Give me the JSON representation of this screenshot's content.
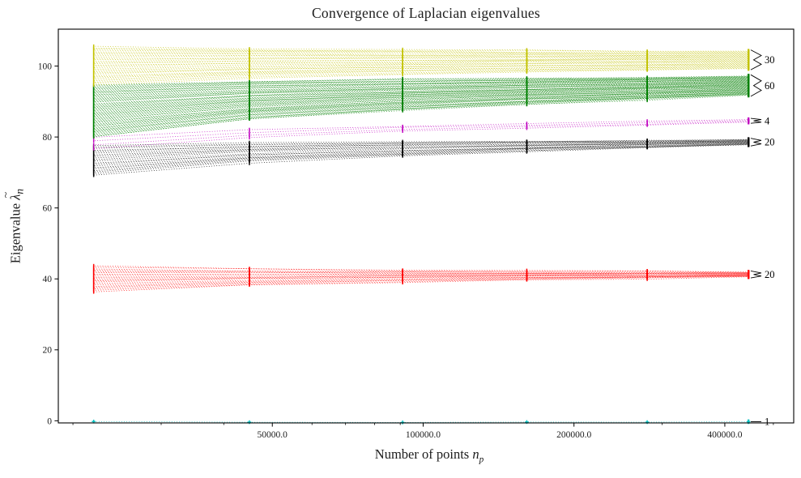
{
  "chart_data": {
    "type": "line",
    "title": "Convergence of Laplacian eigenvalues",
    "xlabel": {
      "prefix": "Number of points ",
      "symbol": "n",
      "subscript": "p"
    },
    "ylabel": {
      "prefix": "Eigenvalue ",
      "symbol": "λ",
      "accent": "~",
      "subscript": "n"
    },
    "xscale": "log",
    "yscale": "linear",
    "grid": false,
    "legend": "none",
    "xlim": [
      18700,
      549000
    ],
    "ylim": [
      -0.6,
      110.4
    ],
    "x_values": [
      22000,
      45000,
      91000,
      161000,
      280000,
      446000
    ],
    "convergence_profile": [
      1,
      0.58,
      0.36,
      0.22,
      0.11,
      0
    ],
    "x_ticks_major": [
      {
        "value": 50000,
        "label": "50000.0"
      },
      {
        "value": 100000,
        "label": "100000.0"
      },
      {
        "value": 200000,
        "label": "200000.0"
      },
      {
        "value": 400000,
        "label": "400000.0"
      }
    ],
    "x_ticks_minor": [
      20000,
      30000,
      40000,
      60000,
      70000,
      80000,
      90000,
      300000,
      500000
    ],
    "y_ticks": [
      {
        "value": 0,
        "label": "0"
      },
      {
        "value": 20,
        "label": "20"
      },
      {
        "value": 40,
        "label": "40"
      },
      {
        "value": 60,
        "label": "60"
      },
      {
        "value": 80,
        "label": "80"
      },
      {
        "value": 100,
        "label": "100"
      }
    ],
    "groups": [
      {
        "name": "eigenvalue-1-cyan",
        "color": "#00bfbf",
        "count": 1,
        "annotation": "1",
        "left_range": [
          -0.25,
          -0.25
        ],
        "right_range": [
          -0.25,
          -0.25
        ]
      },
      {
        "name": "band-20-red",
        "color": "#ff0000",
        "count": 20,
        "annotation": "20",
        "left_range": [
          36.4,
          43.6
        ],
        "right_range": [
          40.6,
          41.9
        ]
      },
      {
        "name": "band-20-black",
        "color": "#000000",
        "count": 20,
        "annotation": "20",
        "left_range": [
          69.2,
          77.6
        ],
        "right_range": [
          77.8,
          79.3
        ]
      },
      {
        "name": "band-4-magenta",
        "color": "#bf00bf",
        "count": 4,
        "annotation": "4",
        "left_range": [
          76.8,
          80.0
        ],
        "right_range": [
          84.2,
          84.9
        ]
      },
      {
        "name": "band-60-green",
        "color": "#008000",
        "count": 60,
        "annotation": "60",
        "left_range": [
          80.0,
          94.7
        ],
        "right_range": [
          91.8,
          97.2
        ]
      },
      {
        "name": "band-30-yellow",
        "color": "#c2c200",
        "count": 30,
        "annotation": "30",
        "left_range": [
          94.7,
          105.5
        ],
        "right_range": [
          99.3,
          104.2
        ]
      }
    ],
    "annotation_color": "#000000",
    "axis_color": "#000000",
    "tick_label_color": "#1c1c1c"
  }
}
